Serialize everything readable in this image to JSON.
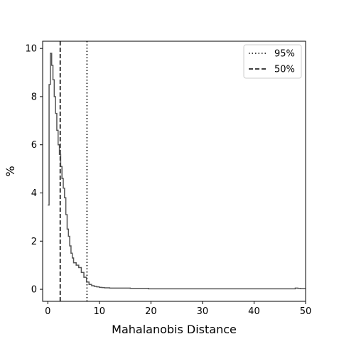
{
  "chart_data": {
    "type": "line",
    "subtype": "step-histogram",
    "title": "",
    "xlabel": "Mahalanobis Distance",
    "ylabel": "%",
    "xlim": [
      -1,
      50
    ],
    "ylim": [
      -0.5,
      10.3
    ],
    "xticks": [
      0,
      10,
      20,
      30,
      40,
      50
    ],
    "yticks": [
      0,
      2,
      4,
      6,
      8,
      10
    ],
    "grid": false,
    "legend_position": "top-right",
    "series": [
      {
        "kind": "step",
        "color": "#555555",
        "x": [
          0.0,
          0.25,
          0.5,
          0.75,
          1.0,
          1.25,
          1.5,
          1.75,
          2.0,
          2.25,
          2.5,
          2.75,
          3.0,
          3.25,
          3.5,
          3.75,
          4.0,
          4.25,
          4.5,
          4.75,
          5.0,
          5.5,
          6.0,
          6.5,
          7.0,
          7.5,
          8.0,
          8.5,
          9.0,
          9.5,
          10.0,
          10.5,
          11.0,
          12.0,
          13.0,
          14.0,
          16.0,
          18.0,
          19.5,
          30.0,
          40.0,
          48.0,
          48.5,
          49.0,
          50.0
        ],
        "y": [
          3.5,
          8.5,
          9.8,
          9.3,
          8.7,
          8.0,
          7.3,
          6.6,
          6.0,
          5.6,
          5.1,
          4.6,
          4.2,
          3.8,
          3.1,
          2.5,
          2.2,
          1.8,
          1.5,
          1.3,
          1.1,
          1.0,
          0.9,
          0.7,
          0.5,
          0.3,
          0.2,
          0.15,
          0.12,
          0.1,
          0.08,
          0.07,
          0.06,
          0.05,
          0.05,
          0.05,
          0.04,
          0.04,
          0.02,
          0.02,
          0.02,
          0.05,
          0.04,
          0.03,
          0.03
        ]
      }
    ],
    "reference_lines": [
      {
        "label": "95%",
        "x": 7.6,
        "style": "dotted",
        "color": "#000000"
      },
      {
        "label": "50%",
        "x": 2.4,
        "style": "dashed",
        "color": "#000000"
      }
    ]
  }
}
